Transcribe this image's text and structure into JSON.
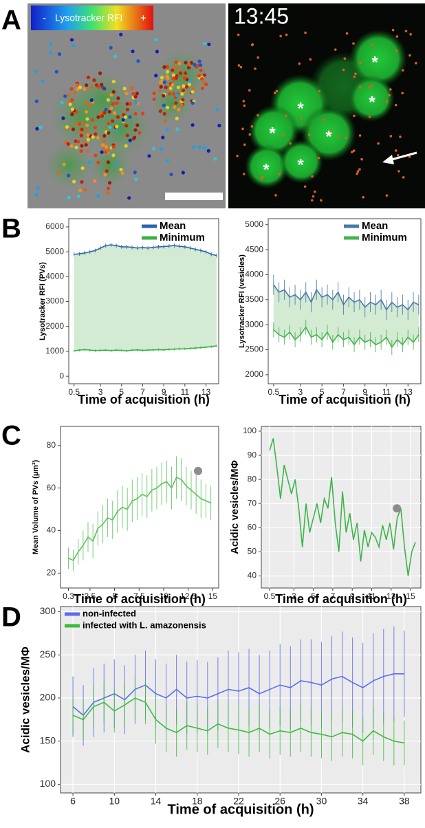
{
  "figure": {
    "panel_labels": [
      "A",
      "B",
      "C",
      "D"
    ],
    "image_overlay": {
      "colorbar_min": "-",
      "colorbar_label": "Lysotracker RFI",
      "colorbar_max": "+",
      "timestamp": "13:45",
      "asterisk": "*"
    }
  },
  "chart_data": [
    {
      "type": "line",
      "xlabel": "Time of acquisition (h)",
      "ylabel": "Lysotracker RFI (PVs)",
      "xlim": [
        0,
        14.2
      ],
      "xticks": [
        0.5,
        3,
        5,
        7,
        9,
        11,
        13
      ],
      "ylim": [
        -300,
        6330
      ],
      "yticks": [
        0,
        1000,
        2000,
        3000,
        4000,
        5000,
        6000
      ],
      "legend": "top-right",
      "fill_between": true,
      "fill_color": "#d3ead3",
      "background": "#ffffff",
      "x": [
        0.5,
        1,
        1.5,
        2,
        2.5,
        3,
        3.5,
        4,
        4.5,
        5,
        5.5,
        6,
        6.5,
        7,
        7.5,
        8,
        8.5,
        9,
        9.5,
        10,
        10.5,
        11,
        11.5,
        12,
        12.5,
        13,
        13.5,
        14
      ],
      "series": [
        {
          "name": "Mean",
          "color": "#2b64b0",
          "values": [
            4900,
            4920,
            4950,
            5000,
            5050,
            5150,
            5250,
            5280,
            5250,
            5200,
            5200,
            5180,
            5150,
            5170,
            5150,
            5180,
            5200,
            5210,
            5230,
            5250,
            5220,
            5200,
            5150,
            5100,
            5050,
            5000,
            4900,
            4850
          ],
          "errors": [
            80,
            80,
            80,
            80,
            80,
            80,
            80,
            80,
            80,
            80,
            80,
            80,
            80,
            80,
            80,
            80,
            80,
            80,
            80,
            80,
            80,
            80,
            80,
            80,
            80,
            80,
            80,
            80
          ]
        },
        {
          "name": "Minimum",
          "color": "#38b044",
          "values": [
            1020,
            1050,
            1070,
            1050,
            1030,
            1040,
            1050,
            1030,
            1050,
            1040,
            1020,
            1050,
            1060,
            1040,
            1050,
            1060,
            1070,
            1060,
            1080,
            1090,
            1100,
            1100,
            1120,
            1130,
            1150,
            1170,
            1190,
            1220
          ],
          "errors": [
            50,
            50,
            50,
            50,
            50,
            50,
            50,
            50,
            50,
            50,
            50,
            50,
            50,
            50,
            50,
            50,
            50,
            50,
            50,
            50,
            50,
            50,
            50,
            50,
            50,
            50,
            50,
            50
          ]
        }
      ]
    },
    {
      "type": "line",
      "xlabel": "Time of acquisition (h)",
      "ylabel": "Lysotracker RFI (vesicles)",
      "xlim": [
        0,
        14.2
      ],
      "xticks": [
        0.5,
        3,
        5,
        7,
        9,
        11,
        13
      ],
      "ylim": [
        1820,
        5120
      ],
      "yticks": [
        2000,
        2500,
        3000,
        3500,
        4000,
        4500,
        5000
      ],
      "legend": "top-right",
      "fill_between": true,
      "fill_color": "#d3ead3",
      "background": "#ffffff",
      "x": [
        0.5,
        1,
        1.5,
        2,
        2.5,
        3,
        3.5,
        4,
        4.5,
        5,
        5.5,
        6,
        6.5,
        7,
        7.5,
        8,
        8.5,
        9,
        9.5,
        10,
        10.5,
        11,
        11.5,
        12,
        12.5,
        13,
        13.5,
        14
      ],
      "series": [
        {
          "name": "Mean",
          "color": "#4a78a8",
          "values": [
            3800,
            3650,
            3700,
            3550,
            3600,
            3500,
            3650,
            3450,
            3700,
            3550,
            3600,
            3500,
            3650,
            3400,
            3550,
            3450,
            3500,
            3350,
            3450,
            3400,
            3500,
            3300,
            3450,
            3350,
            3400,
            3300,
            3450,
            3400
          ],
          "errors": [
            200,
            200,
            200,
            200,
            200,
            200,
            200,
            200,
            200,
            200,
            200,
            200,
            200,
            200,
            200,
            200,
            200,
            200,
            200,
            200,
            200,
            200,
            200,
            200,
            200,
            200,
            200,
            200
          ]
        },
        {
          "name": "Minimum",
          "color": "#44b44c",
          "values": [
            2900,
            2800,
            2750,
            2850,
            2700,
            2800,
            2950,
            2750,
            2800,
            2700,
            2850,
            2650,
            2800,
            2700,
            2750,
            2600,
            2750,
            2650,
            2700,
            2600,
            2650,
            2750,
            2550,
            2700,
            2600,
            2750,
            2650,
            2800
          ],
          "errors": [
            150,
            150,
            150,
            150,
            150,
            150,
            150,
            150,
            150,
            150,
            150,
            150,
            150,
            150,
            150,
            150,
            150,
            150,
            150,
            150,
            150,
            150,
            150,
            150,
            150,
            150,
            150,
            150
          ]
        }
      ]
    },
    {
      "type": "line",
      "xlabel": "Time of acquisition (h)",
      "ylabel": "Mean Volume of PVs (µm³)",
      "xlim": [
        -0.5,
        15.6
      ],
      "xticks": [
        0.3,
        2.5,
        5,
        7.5,
        10,
        12.5,
        15
      ],
      "ylim": [
        13,
        89
      ],
      "yticks": [
        20,
        40,
        60,
        80
      ],
      "background": "#ffffff",
      "marker_point": {
        "x": 13.5,
        "y": 68,
        "color": "#8c8c8c"
      },
      "x": [
        0.3,
        0.8,
        1.3,
        1.8,
        2.3,
        2.8,
        3.3,
        3.8,
        4.3,
        4.8,
        5.3,
        5.8,
        6.3,
        6.8,
        7.3,
        7.8,
        8.3,
        8.8,
        9.3,
        9.8,
        10.3,
        10.8,
        11.3,
        11.8,
        12.3,
        12.8,
        13.3,
        13.8,
        14.3,
        14.8
      ],
      "series": [
        {
          "color": "#5cc45c",
          "values": [
            27,
            26,
            30,
            33,
            37,
            35,
            41,
            43,
            46,
            45,
            49,
            51,
            50,
            54,
            55,
            57,
            56,
            59,
            60,
            62,
            63,
            60,
            65,
            64,
            61,
            59,
            57,
            55,
            54,
            53
          ],
          "errors": [
            5,
            5,
            6,
            7,
            7,
            8,
            8,
            9,
            9,
            9,
            10,
            10,
            10,
            10,
            10,
            10,
            10,
            10,
            10,
            10,
            10,
            10,
            10,
            10,
            9,
            9,
            9,
            9,
            8,
            8
          ]
        }
      ]
    },
    {
      "type": "line",
      "xlabel": "Time of acquisition (h)",
      "ylabel": "Acidic vesicles/MΦ",
      "xlim": [
        -0.35,
        16.06
      ],
      "xticks": [
        0.5,
        3,
        5,
        7,
        9,
        11,
        13,
        15
      ],
      "ylim": [
        35,
        102
      ],
      "yticks": [
        40,
        50,
        60,
        70,
        80,
        90,
        100
      ],
      "background": "#ececec",
      "grid": true,
      "marker_point": {
        "x": 13.6,
        "y": 68,
        "color": "#8c8c8c"
      },
      "x": [
        0.5,
        0.875,
        1.25,
        1.625,
        2,
        2.375,
        2.75,
        3.125,
        3.5,
        3.875,
        4.25,
        4.625,
        5,
        5.375,
        5.75,
        6.125,
        6.5,
        6.875,
        7.25,
        7.625,
        8,
        8.375,
        8.75,
        9.125,
        9.5,
        9.875,
        10.25,
        10.625,
        11,
        11.375,
        11.75,
        12.125,
        12.5,
        12.875,
        13.25,
        13.625,
        14,
        14.375,
        14.75,
        15.125,
        15.5
      ],
      "series": [
        {
          "color": "#3cb44a",
          "values": [
            92,
            97,
            85,
            72,
            86,
            80,
            74,
            80,
            68,
            52,
            70,
            58,
            64,
            70,
            62,
            72,
            68,
            81,
            62,
            50,
            75,
            58,
            66,
            55,
            62,
            46,
            59,
            52,
            58,
            56,
            52,
            61,
            55,
            62,
            51,
            64,
            68,
            52,
            40,
            50,
            54
          ]
        }
      ]
    },
    {
      "type": "line",
      "xlabel": "Time of acquisition (h)",
      "ylabel": "Acidic vesicles/MΦ",
      "xlim": [
        4.8,
        39.6
      ],
      "xticks": [
        6,
        10,
        14,
        18,
        22,
        26,
        30,
        34,
        38
      ],
      "ylim": [
        90,
        306
      ],
      "yticks": [
        100,
        150,
        200,
        250,
        300
      ],
      "background": "#ebebeb",
      "grid": true,
      "legend": "top-left",
      "x": [
        6,
        7,
        8,
        9,
        10,
        11,
        12,
        13,
        14,
        15,
        16,
        17,
        18,
        19,
        20,
        21,
        22,
        23,
        24,
        25,
        26,
        27,
        28,
        29,
        30,
        31,
        32,
        33,
        34,
        35,
        36,
        37,
        38
      ],
      "series": [
        {
          "name": "non-infected",
          "color": "#5a6cf0",
          "values": [
            190,
            180,
            195,
            200,
            205,
            198,
            210,
            215,
            205,
            200,
            210,
            200,
            202,
            200,
            205,
            210,
            208,
            212,
            205,
            210,
            215,
            212,
            220,
            218,
            215,
            222,
            225,
            218,
            212,
            220,
            225,
            228,
            228
          ],
          "errors": [
            35,
            35,
            40,
            40,
            40,
            40,
            40,
            40,
            40,
            40,
            40,
            42,
            42,
            42,
            42,
            45,
            45,
            45,
            45,
            45,
            48,
            48,
            48,
            50,
            50,
            50,
            52,
            52,
            52,
            55,
            55,
            55,
            50
          ]
        },
        {
          "name": "infected with L. amazonensis",
          "color": "#3cbc3c",
          "values": [
            180,
            175,
            190,
            195,
            185,
            192,
            200,
            195,
            175,
            165,
            160,
            168,
            165,
            162,
            170,
            165,
            163,
            160,
            165,
            158,
            162,
            160,
            165,
            160,
            158,
            155,
            160,
            158,
            150,
            162,
            155,
            150,
            148
          ],
          "errors": [
            22,
            22,
            24,
            24,
            25,
            25,
            25,
            25,
            28,
            28,
            28,
            28,
            28,
            28,
            28,
            28,
            28,
            28,
            28,
            28,
            28,
            28,
            28,
            28,
            28,
            28,
            28,
            28,
            28,
            28,
            28,
            28,
            26
          ]
        }
      ]
    }
  ]
}
